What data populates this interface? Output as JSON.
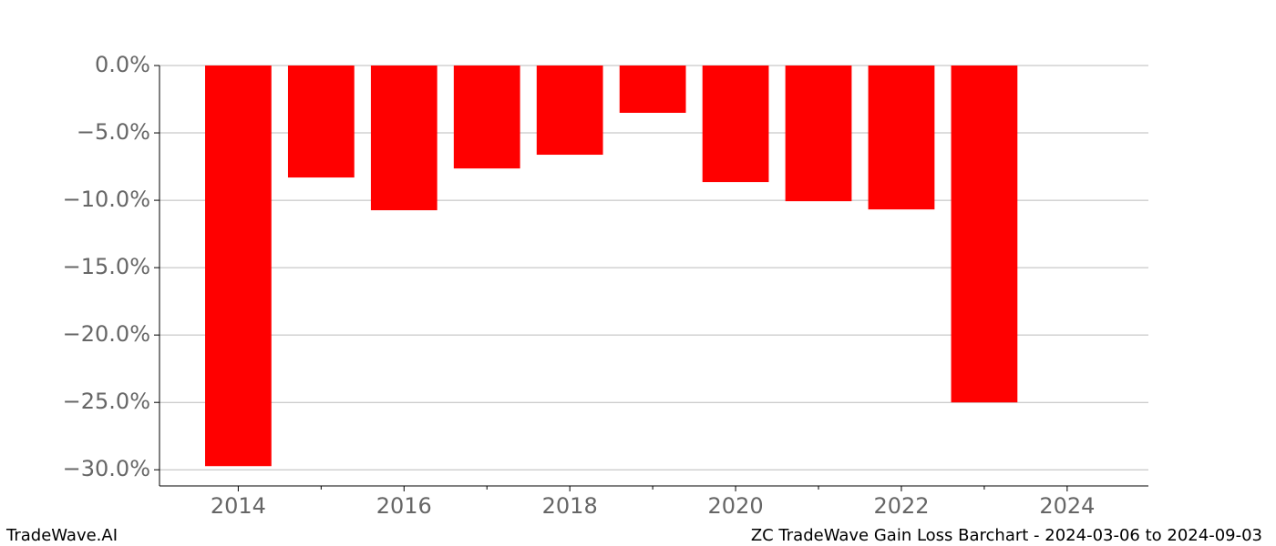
{
  "chart_data": {
    "type": "bar",
    "x": [
      2014,
      2015,
      2016,
      2017,
      2018,
      2019,
      2020,
      2021,
      2022,
      2023
    ],
    "values": [
      -29.73,
      -8.31,
      -10.74,
      -7.64,
      -6.62,
      -3.51,
      -8.65,
      -10.07,
      -10.68,
      -25.0
    ],
    "color": "#ff0000",
    "xlim": [
      2013.05,
      2024.98
    ],
    "xticks": [
      2014,
      2016,
      2018,
      2020,
      2022,
      2024
    ],
    "xticks_minor": [
      2015,
      2017,
      2019,
      2021,
      2023
    ],
    "ylim": [
      -31.2,
      0
    ],
    "yticks": [
      {
        "value": 0,
        "label": "0.0%"
      },
      {
        "value": -5,
        "label": "−5.0%"
      },
      {
        "value": -10,
        "label": "−10.0%"
      },
      {
        "value": -15,
        "label": "−15.0%"
      },
      {
        "value": -20,
        "label": "−20.0%"
      },
      {
        "value": -25,
        "label": "−25.0%"
      },
      {
        "value": -30,
        "label": "−30.0%"
      }
    ],
    "grid": true,
    "footer_left": "TradeWave.AI",
    "footer_right": "ZC TradeWave Gain Loss Barchart - 2024-03-06 to 2024-09-03"
  }
}
